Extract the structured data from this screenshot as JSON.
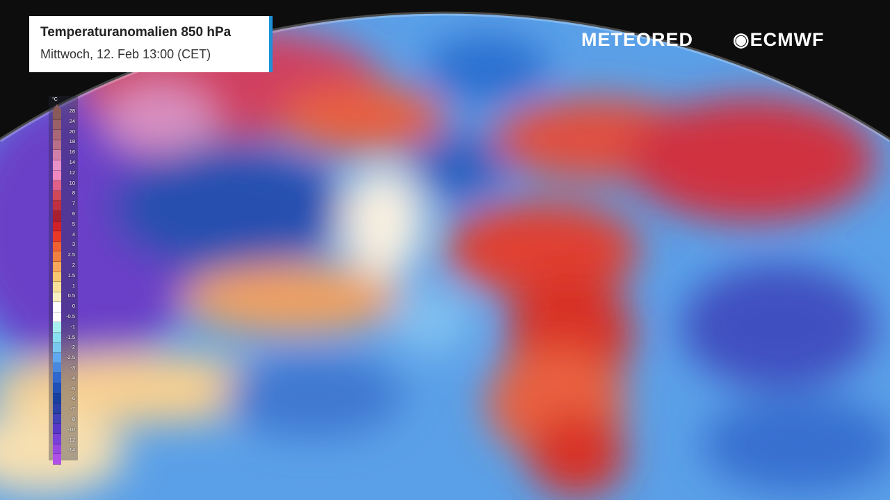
{
  "title": "Temperaturanomalien 850 hPa",
  "subtitle": "Mittwoch, 12. Feb 13:00 (CET)",
  "brands": {
    "meteored": "METEORED",
    "ecmwf": "ECMWF"
  },
  "accent_color": "#1e90d8",
  "legend": {
    "unit": "°C",
    "labels": [
      "28",
      "24",
      "20",
      "18",
      "16",
      "14",
      "12",
      "10",
      "8",
      "7",
      "6",
      "5",
      "4",
      "3",
      "2.5",
      "2",
      "1.5",
      "1",
      "0.5",
      "0",
      "-0.5",
      "-1",
      "-1.5",
      "-2",
      "-2.5",
      "-3",
      "-4",
      "-5",
      "-6",
      "-7",
      "-8",
      "-10",
      "-12",
      "-14"
    ],
    "colors": [
      "#8a5a5a",
      "#9a6068",
      "#a86878",
      "#b87088",
      "#d080a8",
      "#e890c8",
      "#f088c0",
      "#e06088",
      "#d04858",
      "#c03040",
      "#a82030",
      "#d02028",
      "#e83828",
      "#f06030",
      "#f08040",
      "#f8a858",
      "#f8c870",
      "#f8e098",
      "#f8f0c0",
      "#ffffff",
      "#ffffff",
      "#a8f0f0",
      "#88e0f0",
      "#78c8f0",
      "#60a8f0",
      "#4888e0",
      "#3068d0",
      "#2050b8",
      "#1840a0",
      "#2840a8",
      "#4040b8",
      "#5838c8",
      "#7840d8",
      "#9848e0",
      "#b050e8"
    ]
  }
}
